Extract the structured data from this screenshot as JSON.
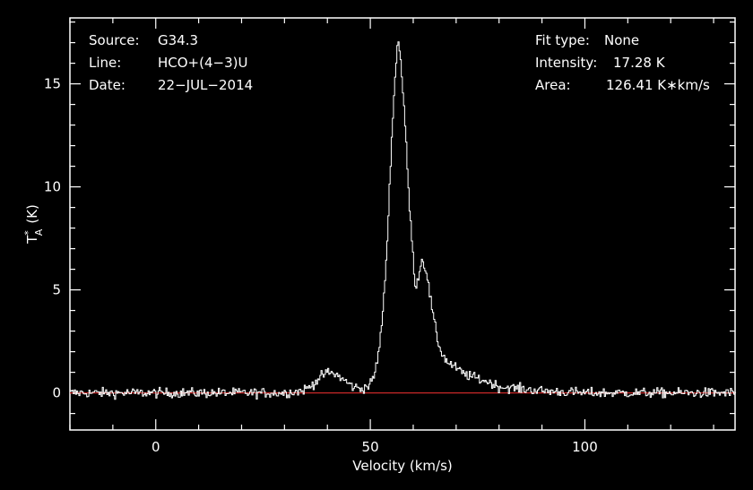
{
  "info_left": [
    {
      "key": "Source:",
      "value": "G34.3"
    },
    {
      "key": "Line:",
      "value": "HCO+(4−3)U"
    },
    {
      "key": "Date:",
      "value": "22−JUL−2014"
    }
  ],
  "info_right": [
    {
      "key": "Fit type:",
      "value": "None"
    },
    {
      "key": "Intensity:",
      "value": "17.28 K"
    },
    {
      "key": "Area:",
      "value": "126.41 K∗km/s"
    }
  ],
  "chart_data": {
    "type": "line",
    "xlabel": "Velocity (km/s)",
    "ylabel_main": "T",
    "ylabel_sup": "*",
    "ylabel_sub": "A",
    "ylabel_unit": "(K)",
    "xlim": [
      -20,
      135
    ],
    "ylim": [
      -1.8,
      18.2
    ],
    "xticks": [
      0,
      50,
      100
    ],
    "xtick_labels": [
      "0",
      "50",
      "100"
    ],
    "yticks": [
      0,
      5,
      10,
      15
    ],
    "ytick_labels": [
      "0",
      "5",
      "10",
      "15"
    ],
    "grid": false,
    "series": [
      {
        "color": "#ffffff",
        "x": [
          -20,
          -15,
          -10,
          -5,
          0,
          5,
          10,
          15,
          20,
          25,
          30,
          34,
          36,
          38,
          40,
          42,
          44,
          46,
          48,
          50,
          51,
          52,
          53,
          54,
          55,
          56,
          56.5,
          57,
          58,
          59,
          60,
          60.5,
          61,
          62,
          63,
          64,
          65,
          66,
          67,
          68,
          70,
          72,
          75,
          78,
          80,
          85,
          90,
          95,
          100,
          110,
          120,
          130,
          135
        ],
        "y": [
          0,
          0,
          0,
          0,
          0,
          0,
          0,
          0,
          0,
          0,
          0,
          0.1,
          0.3,
          0.7,
          1.0,
          0.9,
          0.6,
          0.3,
          0.2,
          0.4,
          0.9,
          2.0,
          4.0,
          7.5,
          12.5,
          16.0,
          17.28,
          16.4,
          13.5,
          9.5,
          6.5,
          5.2,
          5.4,
          6.5,
          6.0,
          4.6,
          3.3,
          2.3,
          1.8,
          1.5,
          1.2,
          0.9,
          0.7,
          0.5,
          0.3,
          0.2,
          0.1,
          0.05,
          0,
          0,
          0,
          0,
          0
        ]
      }
    ],
    "baseline": {
      "y": 0,
      "color": "#c82828"
    }
  }
}
